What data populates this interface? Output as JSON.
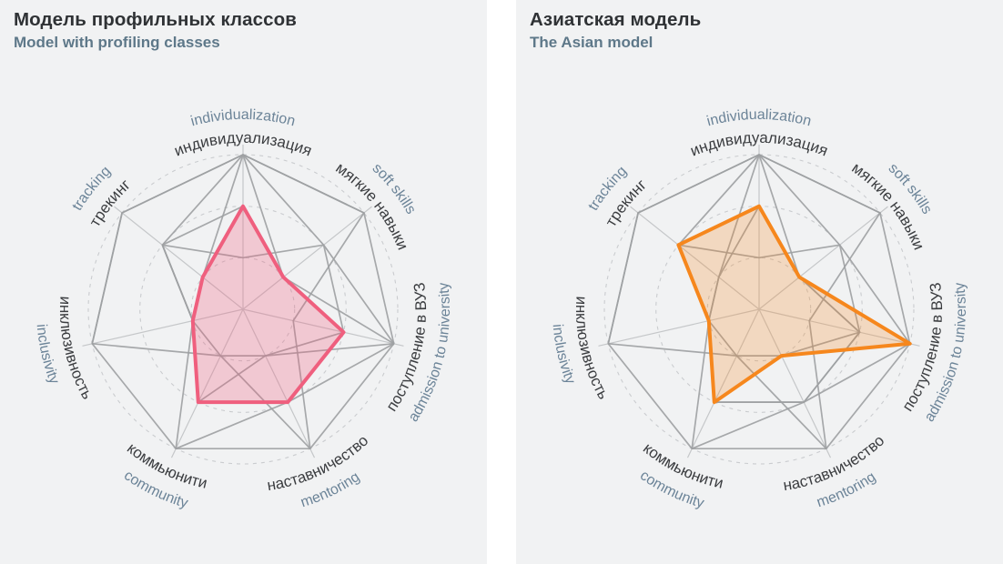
{
  "page": {
    "background": "#ffffff",
    "panel_background": "#f1f2f3"
  },
  "panels": [
    {
      "title": "Модель профильных классов",
      "subtitle": "Model with profiling classes",
      "accent": "#ef5f7e",
      "fill_opacity": 0.28,
      "values": [
        2,
        1,
        2,
        2,
        2,
        1,
        1
      ]
    },
    {
      "title": "Азиатская модель",
      "subtitle": "The Asian model",
      "accent": "#f6871d",
      "fill_opacity": 0.24,
      "values": [
        2,
        1,
        3,
        1,
        2,
        1,
        2
      ]
    }
  ],
  "chart_data": {
    "type": "radar",
    "title": "",
    "axes": [
      {
        "ru": "индивидуализация",
        "en": "individualization"
      },
      {
        "ru": "мягкие навыки",
        "en": "soft skills"
      },
      {
        "ru": "поступление в ВУЗ",
        "en": "admission to university"
      },
      {
        "ru": "наставничество",
        "en": "mentoring"
      },
      {
        "ru": "коммьюнити",
        "en": "community"
      },
      {
        "ru": "инклюзивность",
        "en": "inclusivity"
      },
      {
        "ru": "трекинг",
        "en": "tracking"
      }
    ],
    "scale": {
      "min": 0,
      "max": 3,
      "grid_rings": [
        1,
        2,
        3
      ],
      "grid_style": "dashed-circles",
      "start_angle_deg": 0,
      "direction": "clockwise-from-top"
    },
    "series": [
      {
        "name": "Модель профильных классов",
        "color": "#ef5f7e",
        "values": [
          2,
          1,
          2,
          2,
          2,
          1,
          1
        ]
      },
      {
        "name": "Азиатская модель",
        "color": "#f6871d",
        "values": [
          2,
          1,
          3,
          1,
          2,
          1,
          2
        ]
      }
    ],
    "background_series": [
      [
        3,
        3,
        3,
        3,
        3,
        3,
        3
      ],
      [
        3,
        2,
        3,
        2,
        3,
        1,
        2
      ],
      [
        1,
        2,
        2,
        1,
        1,
        1,
        2
      ],
      [
        3,
        3,
        1,
        3,
        1,
        3,
        3
      ],
      [
        3,
        1,
        2,
        2,
        2,
        1,
        1
      ]
    ],
    "legend": "none",
    "colors": {
      "web": "#9da0a2",
      "spokes": "#c5c7c9",
      "grid": "#cacccf",
      "label_ru": "#3b3d40",
      "label_en": "#6c8498"
    }
  }
}
